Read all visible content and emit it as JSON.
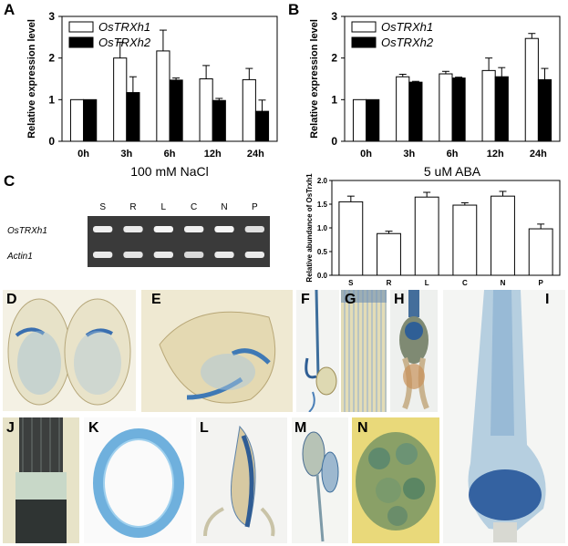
{
  "panels": {
    "A": "A",
    "B": "B",
    "C": "C",
    "photos": [
      "D",
      "E",
      "F",
      "G",
      "H",
      "I",
      "J",
      "K",
      "L",
      "M",
      "N"
    ]
  },
  "colors": {
    "trxh1_fill": "#ffffff",
    "trxh2_fill": "#000000",
    "gus_blue": "#3a7fb8",
    "tissue": "#ece7cf"
  },
  "chart_data": [
    {
      "type": "bar",
      "panel": "A",
      "categories": [
        "0h",
        "3h",
        "6h",
        "12h",
        "24h"
      ],
      "series": [
        {
          "name": "OsTRXh1",
          "values": [
            1.0,
            2.0,
            2.17,
            1.5,
            1.48
          ],
          "errors": [
            0.0,
            0.38,
            0.5,
            0.32,
            0.27
          ]
        },
        {
          "name": "OsTRXh2",
          "values": [
            1.0,
            1.17,
            1.47,
            0.98,
            0.72
          ],
          "errors": [
            0.0,
            0.38,
            0.05,
            0.05,
            0.27
          ]
        }
      ],
      "xlabel": "100 mM NaCl",
      "ylabel": "Relative expression level",
      "ylim": [
        0,
        3
      ],
      "yticks": [
        "0",
        "1",
        "2",
        "3"
      ],
      "legend": "top-left"
    },
    {
      "type": "bar",
      "panel": "B",
      "categories": [
        "0h",
        "3h",
        "6h",
        "12h",
        "24h"
      ],
      "series": [
        {
          "name": "OsTRXh1",
          "values": [
            1.0,
            1.55,
            1.62,
            1.7,
            2.47
          ],
          "errors": [
            0.0,
            0.06,
            0.06,
            0.3,
            0.12
          ]
        },
        {
          "name": "OsTRXh2",
          "values": [
            1.0,
            1.42,
            1.52,
            1.55,
            1.48
          ],
          "errors": [
            0.0,
            0.02,
            0.02,
            0.22,
            0.27
          ]
        }
      ],
      "xlabel": "5 uM ABA",
      "ylabel": "Relative expression level",
      "ylim": [
        0,
        3
      ],
      "yticks": [
        "0",
        "1",
        "2",
        "3"
      ],
      "legend": "top-left"
    },
    {
      "type": "bar",
      "panel": "C",
      "categories": [
        "S",
        "R",
        "L",
        "C",
        "N",
        "P"
      ],
      "series": [
        {
          "values": [
            1.55,
            0.88,
            1.65,
            1.48,
            1.67,
            0.98
          ],
          "errors": [
            0.12,
            0.05,
            0.1,
            0.05,
            0.1,
            0.1
          ]
        }
      ],
      "ylabel": "Relative abundance of OsTrxh1",
      "ylim": [
        0,
        2.0
      ],
      "yticks": [
        "0.0",
        "0.5",
        "1.0",
        "1.5",
        "2.0"
      ]
    }
  ],
  "gel": {
    "lanes": [
      "S",
      "R",
      "L",
      "C",
      "N",
      "P"
    ],
    "rows": [
      "OsTRXh1",
      "Actin1"
    ],
    "intensity": {
      "OsTRXh1": [
        0.9,
        0.85,
        0.95,
        0.9,
        0.95,
        0.75
      ],
      "Actin1": [
        0.85,
        0.8,
        0.85,
        0.7,
        0.85,
        0.85
      ]
    }
  }
}
